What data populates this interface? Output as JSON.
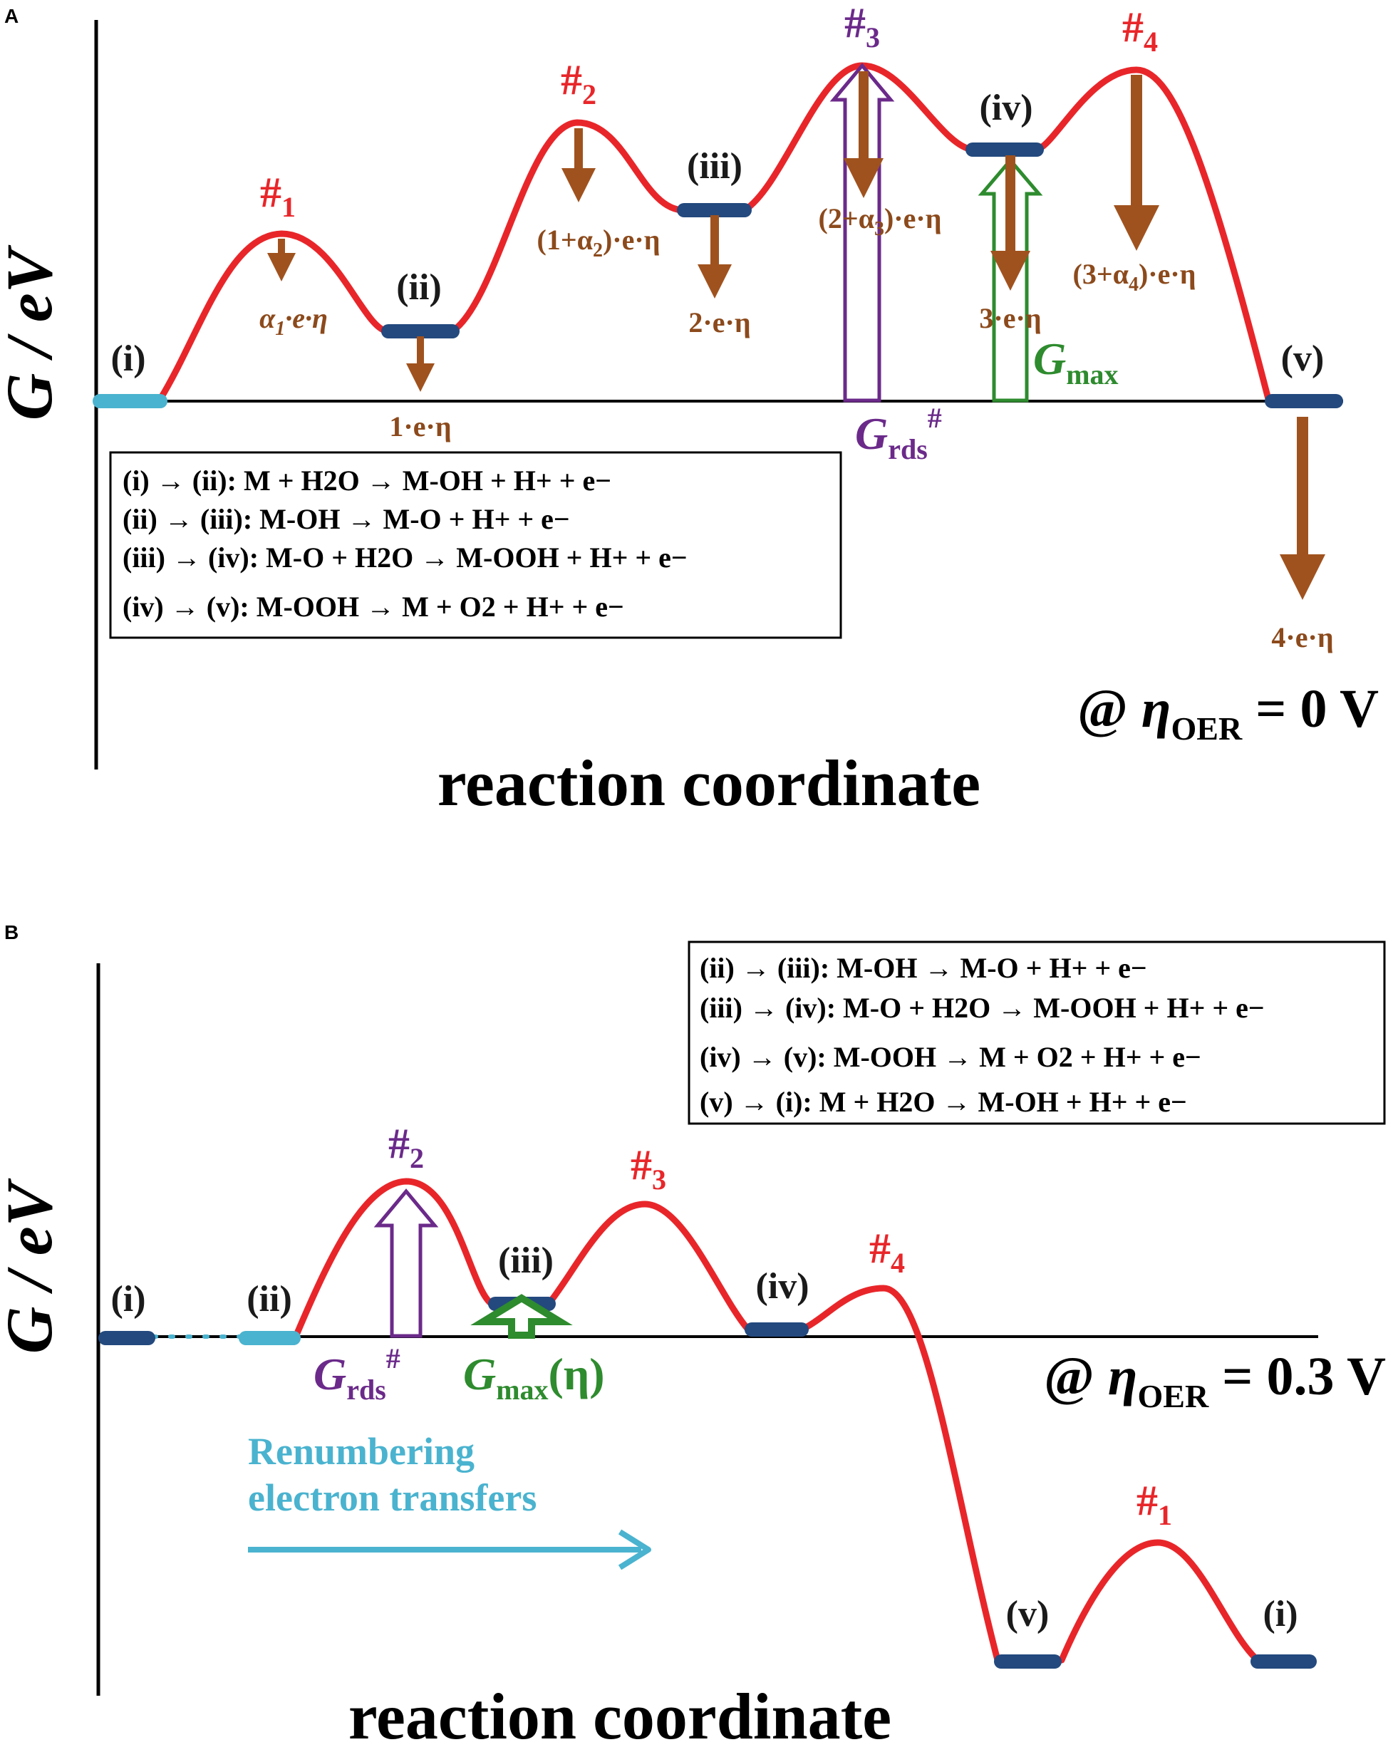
{
  "panelA": {
    "letter": "A",
    "y_axis_label": "G / eV",
    "x_axis_label": "reaction coordinate",
    "condition": "@ ηOER = 0 V",
    "condition_parts": {
      "prefix": "@ ",
      "eta": "η",
      "sub": "OER",
      "rest": " = 0 V"
    },
    "states": [
      "(i)",
      "(ii)",
      "(iii)",
      "(iv)",
      "(v)"
    ],
    "transition_states": [
      {
        "label": "#",
        "sub": "1",
        "color": "#e8262a"
      },
      {
        "label": "#",
        "sub": "2",
        "color": "#e8262a"
      },
      {
        "label": "#",
        "sub": "3",
        "color": "#6b2a8a"
      },
      {
        "label": "#",
        "sub": "4",
        "color": "#e8262a"
      }
    ],
    "shift_labels": [
      {
        "text": "α1·e·η",
        "a": "α",
        "s": "1",
        "b": "·e·η"
      },
      {
        "text": "1·e·η"
      },
      {
        "text": "(1+α2)·e·η",
        "a": "(1+α",
        "s": "2",
        "b": ")·e·η"
      },
      {
        "text": "2·e·η"
      },
      {
        "text": "(2+α3)·e·η",
        "a": "(2+α",
        "s": "3",
        "b": ")·e·η"
      },
      {
        "text": "3·e·η"
      },
      {
        "text": "(3+α4)·e·η",
        "a": "(3+α",
        "s": "4",
        "b": ")·e·η"
      },
      {
        "text": "4·e·η"
      }
    ],
    "g_rds": {
      "text": "Grds#",
      "main": "G",
      "sub": "rds",
      "sup": "#",
      "color": "#6b2a8a"
    },
    "g_max": {
      "text": "Gmax",
      "main": "G",
      "sub": "max",
      "color": "#2e8b2e"
    },
    "equations": [
      "(i) → (ii): M + H2O → M-OH + H+ + e−",
      "(ii) → (iii): M-OH → M-O + H+ + e−",
      "(iii) → (iv): M-O + H2O → M-OOH + H+ + e−",
      "(iv) → (v): M-OOH → M + O2 +  H+ + e−"
    ]
  },
  "panelB": {
    "letter": "B",
    "y_axis_label": "G / eV",
    "x_axis_label": "reaction coordinate",
    "condition": "@ ηOER = 0.3 V",
    "condition_parts": {
      "prefix": "@ ",
      "eta": "η",
      "sub": "OER",
      "rest": " = 0.3 V"
    },
    "states": [
      "(i)",
      "(ii)",
      "(iii)",
      "(iv)",
      "(v)",
      "(i)"
    ],
    "transition_states": [
      {
        "label": "#",
        "sub": "2",
        "color": "#6b2a8a"
      },
      {
        "label": "#",
        "sub": "3",
        "color": "#e8262a"
      },
      {
        "label": "#",
        "sub": "4",
        "color": "#e8262a"
      },
      {
        "label": "#",
        "sub": "1",
        "color": "#e8262a"
      }
    ],
    "g_rds": {
      "text": "Grds#",
      "main": "G",
      "sub": "rds",
      "sup": "#",
      "color": "#6b2a8a"
    },
    "g_max": {
      "text": "Gmax(η)",
      "main": "G",
      "sub": "max",
      "tail": "(η)",
      "color": "#2e8b2e"
    },
    "renumber": [
      "Renumbering",
      "electron transfers"
    ],
    "equations": [
      "(ii) → (iii): M-OH → M-O + H+ + e−",
      "(iii) → (iv): M-O + H2O → M-OOH + H+ + e−",
      "(iv) → (v): M-OOH → M + O2 +  H+ + e−",
      "(v) → (i): M + H2O → M-OH + H+ + e−"
    ]
  },
  "colors": {
    "curve": "#e8262a",
    "state_bar": "#23497e",
    "state_bar_light": "#4ab3cf",
    "shift_arrow": "#a0521e",
    "rds": "#6b2a8a",
    "gmax": "#2e8b2e",
    "renumber": "#4ab3cf"
  }
}
